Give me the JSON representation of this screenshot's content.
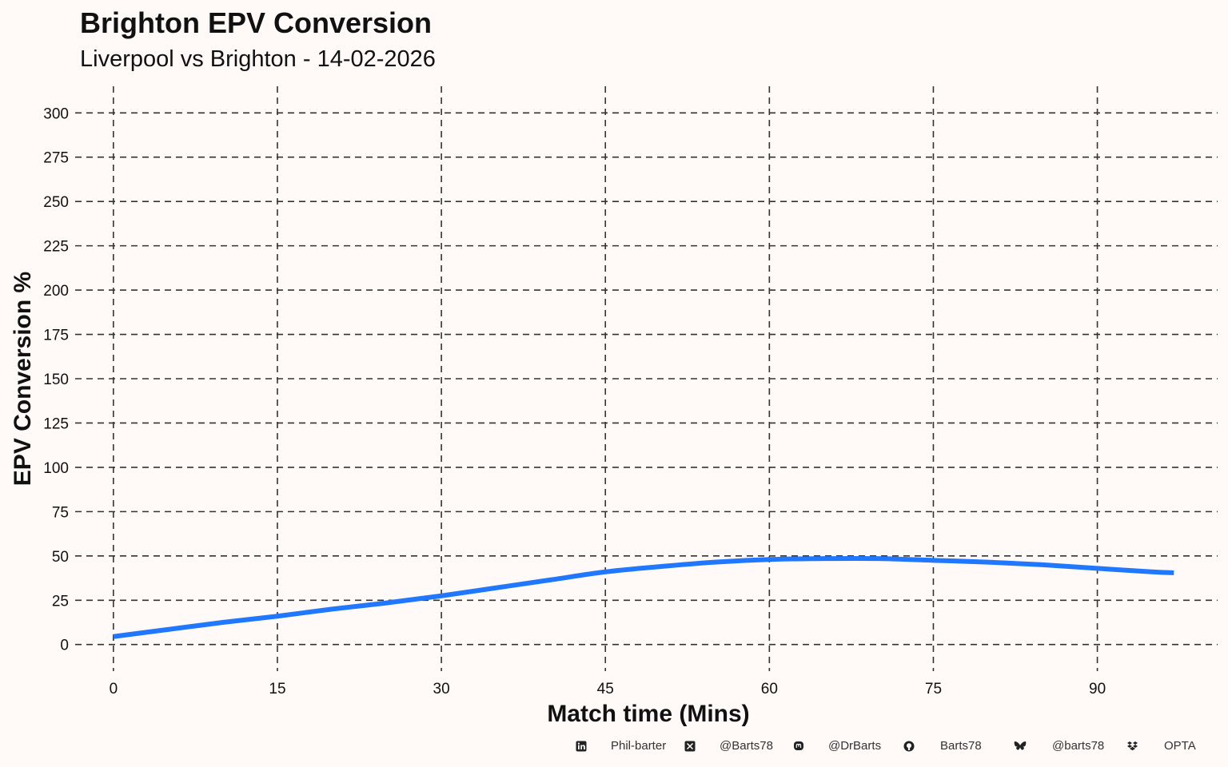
{
  "chart_data": {
    "type": "line",
    "title": "Brighton EPV Conversion",
    "subtitle": "Liverpool vs Brighton - 14-02-2026",
    "xlabel": "Match time (Mins)",
    "ylabel": "EPV Conversion %",
    "xlim": [
      -3.5,
      101
    ],
    "ylim": [
      -15,
      315
    ],
    "x_ticks": [
      0,
      15,
      30,
      45,
      60,
      75,
      90
    ],
    "y_ticks": [
      0,
      25,
      50,
      75,
      100,
      125,
      150,
      175,
      200,
      225,
      250,
      275,
      300
    ],
    "grid": true,
    "grid_style": "dashed",
    "series": [
      {
        "color": "#1f78ff",
        "x": [
          0,
          5,
          10,
          15,
          20,
          25,
          30,
          35,
          40,
          45,
          50,
          55,
          60,
          65,
          70,
          75,
          80,
          85,
          90,
          95,
          97
        ],
        "y": [
          4.5,
          8.5,
          12.5,
          16,
          20,
          23.5,
          27.5,
          32,
          36.5,
          41,
          44,
          46.5,
          48,
          48.5,
          48.5,
          47.5,
          46.5,
          45,
          43,
          41,
          40.5
        ]
      }
    ]
  },
  "footer": {
    "linkedin": "Phil-barter",
    "x_handle": "@Barts78",
    "mastodon": "@DrBarts",
    "github": "Barts78",
    "bluesky": "@barts78",
    "source": "OPTA",
    "icons": [
      "linkedin-icon",
      "x-twitter-icon",
      "mastodon-icon",
      "github-icon",
      "bluesky-icon",
      "dropbox-icon"
    ]
  }
}
